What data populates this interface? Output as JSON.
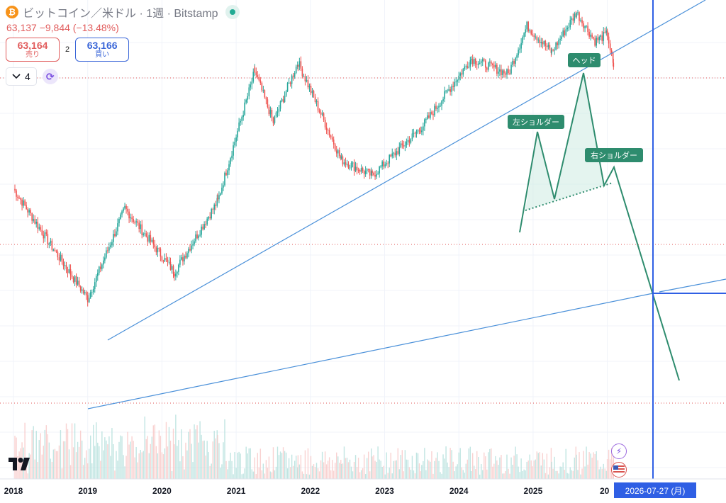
{
  "header": {
    "coin_icon": "bitcoin-icon",
    "coin_glyph": "₿",
    "symbol_title": "ビットコイン／米ドル · 1週 · Bitstamp",
    "price_line": "63,137  −9,844 (−13.48%)",
    "sell": {
      "price": "63,164",
      "label": "売り"
    },
    "spread": "2",
    "buy": {
      "price": "63,166",
      "label": "買い"
    },
    "indicator_count": "4"
  },
  "date_label": "2026-07-27 (月)",
  "colors": {
    "up": "#26a69a",
    "down": "#ef5350",
    "trend": "#4a90d9",
    "pattern": "#2e8c6e",
    "crosshair": "#2f5fe4"
  },
  "chart_data": {
    "type": "candlestick",
    "title": "ビットコイン／米ドル · 1週 · Bitstamp",
    "xlabel": "",
    "ylabel": "",
    "x_ticks": [
      "2018",
      "2019",
      "2020",
      "2021",
      "2022",
      "2023",
      "2024",
      "2025",
      "20"
    ],
    "last_price": 63137,
    "change": -9844,
    "change_pct": -13.48,
    "series": [
      {
        "name": "",
        "points": [
          {
            "x": "2018-01",
            "y": 14000
          },
          {
            "x": "2018-07",
            "y": 7000
          },
          {
            "x": "2019-01",
            "y": 3600
          },
          {
            "x": "2019-07",
            "y": 11000
          },
          {
            "x": "2020-03",
            "y": 5000
          },
          {
            "x": "2020-10",
            "y": 12000
          },
          {
            "x": "2021-04",
            "y": 60000
          },
          {
            "x": "2021-07",
            "y": 32000
          },
          {
            "x": "2021-11",
            "y": 67000
          },
          {
            "x": "2022-06",
            "y": 20000
          },
          {
            "x": "2022-11",
            "y": 16500
          },
          {
            "x": "2023-07",
            "y": 30000
          },
          {
            "x": "2024-03",
            "y": 70000
          },
          {
            "x": "2024-09",
            "y": 58000
          },
          {
            "x": "2024-12",
            "y": 105000
          },
          {
            "x": "2025-04",
            "y": 76000
          },
          {
            "x": "2025-08",
            "y": 124000
          },
          {
            "x": "2025-11",
            "y": 87000
          },
          {
            "x": "2026-01",
            "y": 95000
          },
          {
            "x": "2026-02",
            "y": 63137
          }
        ]
      }
    ],
    "annotations": [
      "ヘッド",
      "左ショルダー",
      "右ショルダー"
    ],
    "grid": true
  }
}
